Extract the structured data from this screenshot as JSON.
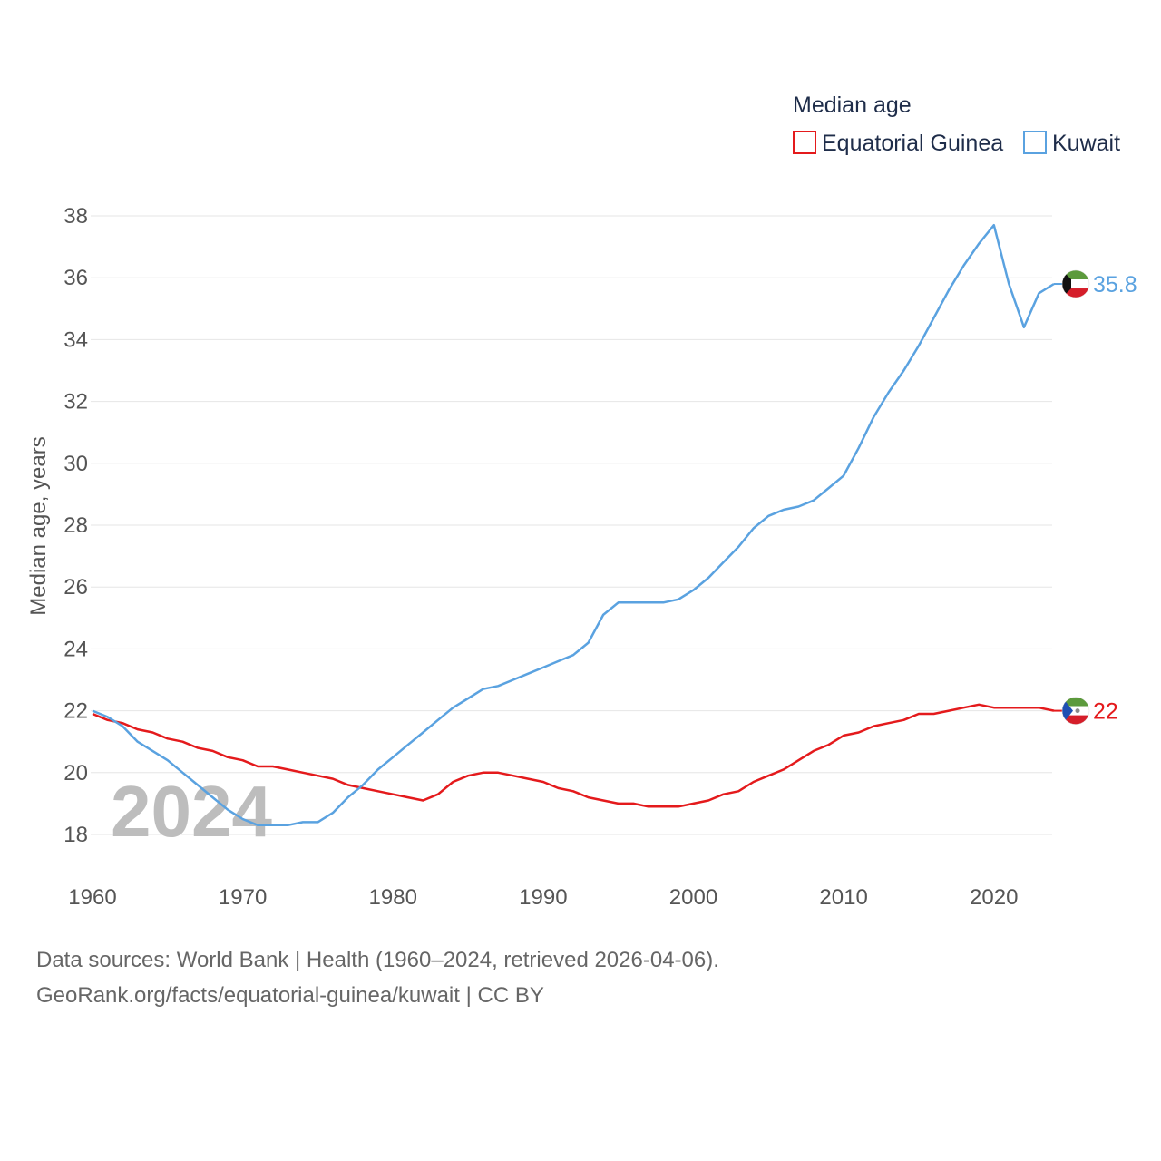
{
  "chart_data": {
    "type": "line",
    "ylabel": "Median age, years",
    "xlabel": "",
    "legend_title": "Median age",
    "legend_position": "top-right",
    "ylim": [
      17,
      38.5
    ],
    "xlim": [
      1960,
      2024
    ],
    "y_ticks": [
      18,
      20,
      22,
      24,
      26,
      28,
      30,
      32,
      34,
      36,
      38
    ],
    "x_ticks": [
      1960,
      1970,
      1980,
      1990,
      2000,
      2010,
      2020
    ],
    "grid": true,
    "year_label": "2024",
    "series": [
      {
        "name": "Equatorial Guinea",
        "color": "#e41a1c",
        "end_label": "22",
        "flag": "equatorial-guinea-flag-icon",
        "x": [
          1960,
          1961,
          1962,
          1963,
          1964,
          1965,
          1966,
          1967,
          1968,
          1969,
          1970,
          1971,
          1972,
          1973,
          1974,
          1975,
          1976,
          1977,
          1978,
          1979,
          1980,
          1981,
          1982,
          1983,
          1984,
          1985,
          1986,
          1987,
          1988,
          1989,
          1990,
          1991,
          1992,
          1993,
          1994,
          1995,
          1996,
          1997,
          1998,
          1999,
          2000,
          2001,
          2002,
          2003,
          2004,
          2005,
          2006,
          2007,
          2008,
          2009,
          2010,
          2011,
          2012,
          2013,
          2014,
          2015,
          2016,
          2017,
          2018,
          2019,
          2020,
          2021,
          2022,
          2023,
          2024
        ],
        "values": [
          21.9,
          21.7,
          21.6,
          21.4,
          21.3,
          21.1,
          21.0,
          20.8,
          20.7,
          20.5,
          20.4,
          20.2,
          20.2,
          20.1,
          20.0,
          19.9,
          19.8,
          19.6,
          19.5,
          19.4,
          19.3,
          19.2,
          19.1,
          19.3,
          19.7,
          19.9,
          20.0,
          20.0,
          19.9,
          19.8,
          19.7,
          19.5,
          19.4,
          19.2,
          19.1,
          19.0,
          19.0,
          18.9,
          18.9,
          18.9,
          19.0,
          19.1,
          19.3,
          19.4,
          19.7,
          19.9,
          20.1,
          20.4,
          20.7,
          20.9,
          21.2,
          21.3,
          21.5,
          21.6,
          21.7,
          21.9,
          21.9,
          22.0,
          22.1,
          22.2,
          22.1,
          22.1,
          22.1,
          22.1,
          22.0
        ]
      },
      {
        "name": "Kuwait",
        "color": "#5aa2e0",
        "end_label": "35.8",
        "flag": "kuwait-flag-icon",
        "x": [
          1960,
          1961,
          1962,
          1963,
          1964,
          1965,
          1966,
          1967,
          1968,
          1969,
          1970,
          1971,
          1972,
          1973,
          1974,
          1975,
          1976,
          1977,
          1978,
          1979,
          1980,
          1981,
          1982,
          1983,
          1984,
          1985,
          1986,
          1987,
          1988,
          1989,
          1990,
          1991,
          1992,
          1993,
          1994,
          1995,
          1996,
          1997,
          1998,
          1999,
          2000,
          2001,
          2002,
          2003,
          2004,
          2005,
          2006,
          2007,
          2008,
          2009,
          2010,
          2011,
          2012,
          2013,
          2014,
          2015,
          2016,
          2017,
          2018,
          2019,
          2020,
          2021,
          2022,
          2023,
          2024
        ],
        "values": [
          22.0,
          21.8,
          21.5,
          21.0,
          20.7,
          20.4,
          20.0,
          19.6,
          19.2,
          18.8,
          18.5,
          18.3,
          18.3,
          18.3,
          18.4,
          18.4,
          18.7,
          19.2,
          19.6,
          20.1,
          20.5,
          20.9,
          21.3,
          21.7,
          22.1,
          22.4,
          22.7,
          22.8,
          23.0,
          23.2,
          23.4,
          23.6,
          23.8,
          24.2,
          25.1,
          25.5,
          25.5,
          25.5,
          25.5,
          25.6,
          25.9,
          26.3,
          26.8,
          27.3,
          27.9,
          28.3,
          28.5,
          28.6,
          28.8,
          29.2,
          29.6,
          30.5,
          31.5,
          32.3,
          33.0,
          33.8,
          34.7,
          35.6,
          36.4,
          37.1,
          37.7,
          35.8,
          34.4,
          35.5,
          35.8
        ]
      }
    ]
  },
  "source": {
    "line1": "Data sources: World Bank | Health (1960–2024, retrieved 2026-04-06).",
    "line2": "GeoRank.org/facts/equatorial-guinea/kuwait | CC BY"
  }
}
